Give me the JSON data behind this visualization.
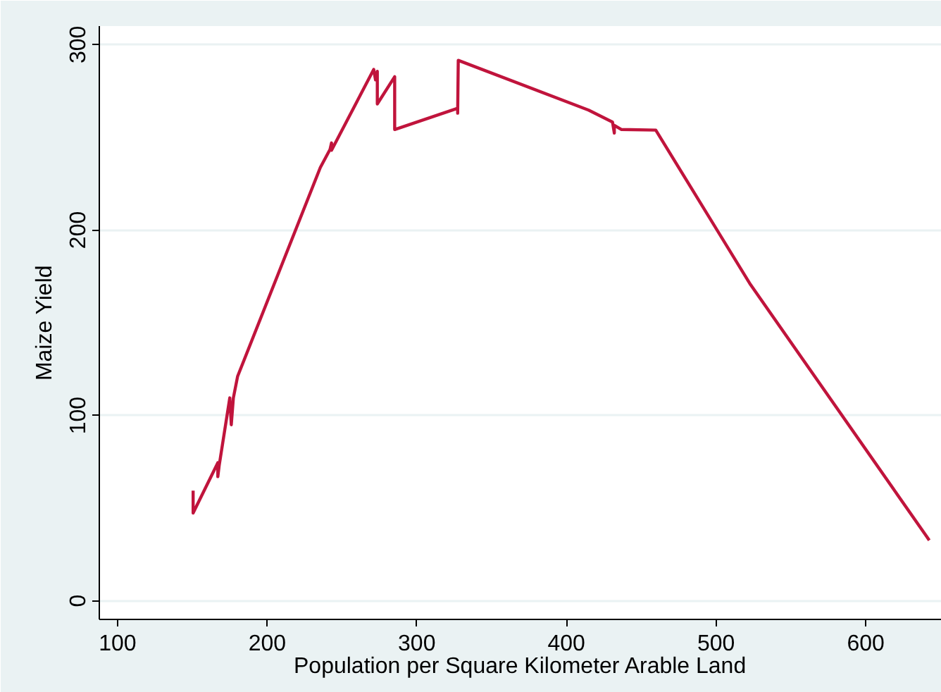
{
  "chart_data": {
    "type": "line",
    "xlabel": "Population per Square Kilometer Arable Land",
    "ylabel": "Maize Yield",
    "x": [
      150.5,
      150.5,
      167,
      167,
      168,
      175,
      176,
      177.4,
      180.2,
      235.5,
      242,
      243,
      243,
      271.2,
      272.4,
      273.6,
      273.6,
      285.2,
      285.2,
      327.3,
      327.3,
      327.7,
      414.8,
      430.8,
      432,
      432,
      436.8,
      459.7,
      523,
      642.5
    ],
    "series": [
      {
        "color": "#c0143c",
        "values": [
          59.5,
          47.4,
          74.5,
          67,
          73.5,
          109.5,
          95,
          109.5,
          121,
          233.7,
          243.5,
          247,
          243,
          286.6,
          281,
          285.6,
          268,
          282.7,
          254.2,
          265.7,
          263,
          291.5,
          264.7,
          258.2,
          252.3,
          256.5,
          254.2,
          253.9,
          170.6,
          32.7
        ]
      }
    ],
    "xlim": [
      87.8,
      650.8
    ],
    "ylim": [
      -10,
      310
    ],
    "xticks": [
      100,
      200,
      300,
      400,
      500,
      600
    ],
    "yticks": [
      0,
      100,
      200,
      300
    ],
    "grid": "y",
    "marker": "none",
    "line_style": "solid"
  }
}
